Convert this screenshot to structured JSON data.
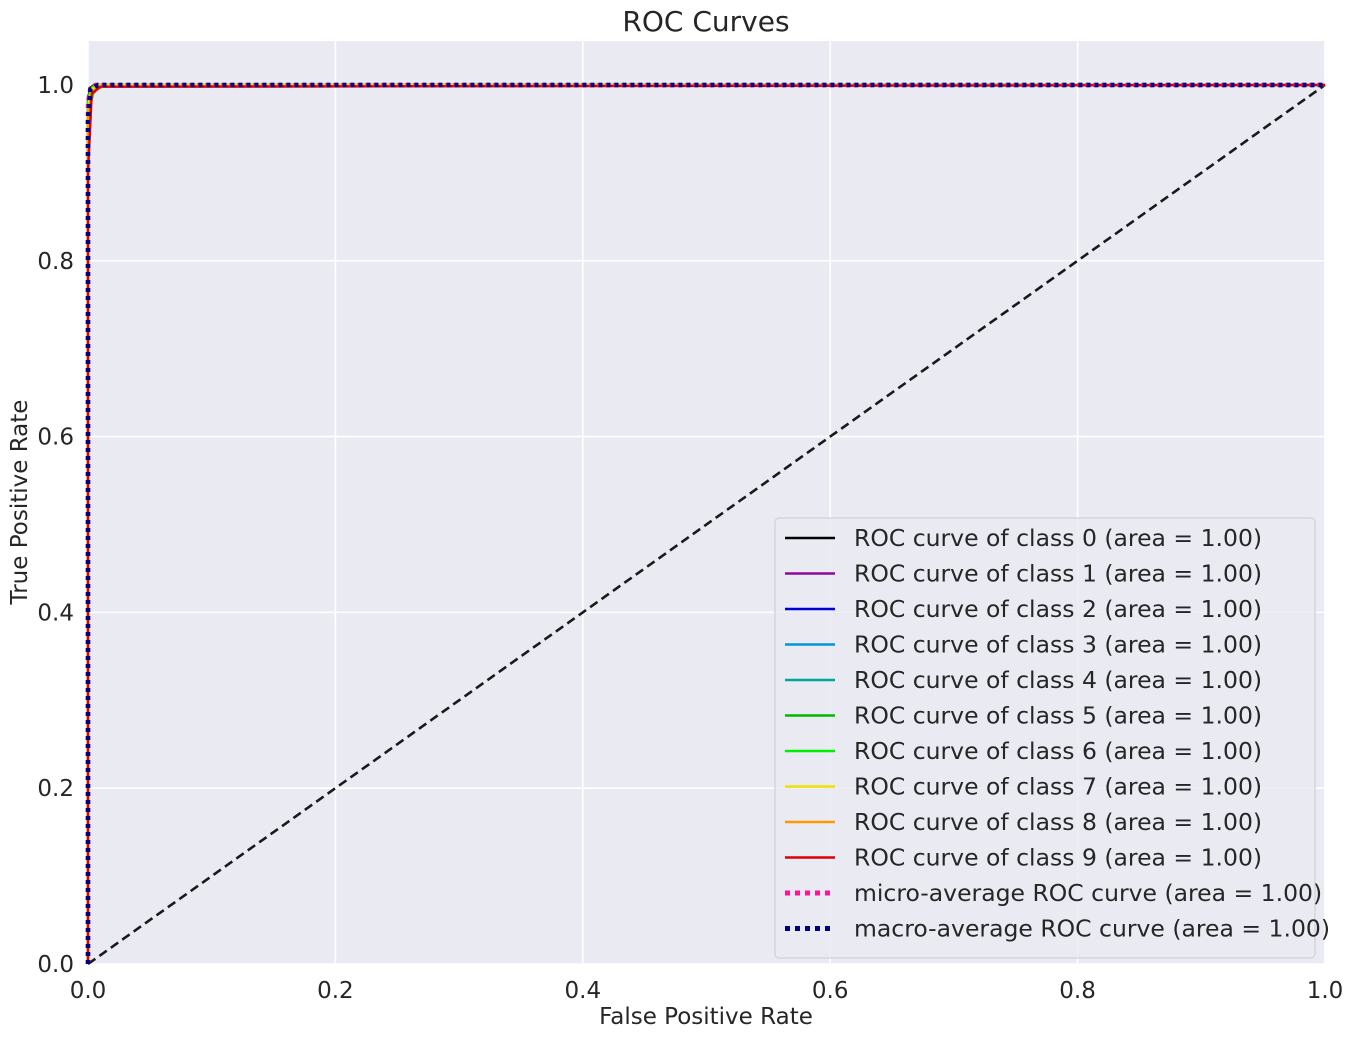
{
  "chart_data": {
    "type": "line",
    "title": "ROC Curves",
    "xlabel": "False Positive Rate",
    "ylabel": "True Positive Rate",
    "xlim": [
      0.0,
      1.0
    ],
    "ylim": [
      0.0,
      1.05
    ],
    "xticks": [
      "0.0",
      "0.2",
      "0.4",
      "0.6",
      "0.8",
      "1.0"
    ],
    "yticks": [
      "0.0",
      "0.2",
      "0.4",
      "0.6",
      "0.8",
      "1.0"
    ],
    "grid": true,
    "legend_position": "lower-right",
    "background_color": "#eaeaf2",
    "series": [
      {
        "name": "ROC curve of class 0 (area = 1.00)",
        "color": "#000000",
        "style": "solid",
        "x": [
          0.0,
          0.0,
          0.002,
          0.005,
          1.0
        ],
        "y": [
          0.0,
          0.985,
          0.997,
          1.0,
          1.0
        ]
      },
      {
        "name": "ROC curve of class 1 (area = 1.00)",
        "color": "#8b0a9c",
        "style": "solid",
        "x": [
          0.0,
          0.0,
          0.002,
          0.006,
          1.0
        ],
        "y": [
          0.0,
          0.98,
          0.996,
          1.0,
          1.0
        ]
      },
      {
        "name": "ROC curve of class 2 (area = 1.00)",
        "color": "#0000d0",
        "style": "solid",
        "x": [
          0.0,
          0.0,
          0.003,
          0.008,
          1.0
        ],
        "y": [
          0.0,
          0.975,
          0.995,
          1.0,
          1.0
        ]
      },
      {
        "name": "ROC curve of class 3 (area = 1.00)",
        "color": "#0095dd",
        "style": "solid",
        "x": [
          0.0,
          0.0,
          0.002,
          0.006,
          1.0
        ],
        "y": [
          0.0,
          0.98,
          0.996,
          1.0,
          1.0
        ]
      },
      {
        "name": "ROC curve of class 4 (area = 1.00)",
        "color": "#00a69a",
        "style": "solid",
        "x": [
          0.0,
          0.0,
          0.003,
          0.008,
          1.0
        ],
        "y": [
          0.0,
          0.97,
          0.994,
          1.0,
          1.0
        ]
      },
      {
        "name": "ROC curve of class 5 (area = 1.00)",
        "color": "#00b800",
        "style": "solid",
        "x": [
          0.0,
          0.0,
          0.004,
          0.01,
          1.0
        ],
        "y": [
          0.0,
          0.965,
          0.99,
          1.0,
          1.0
        ]
      },
      {
        "name": "ROC curve of class 6 (area = 1.00)",
        "color": "#00ee00",
        "style": "solid",
        "x": [
          0.0,
          0.0,
          0.002,
          0.006,
          1.0
        ],
        "y": [
          0.0,
          0.98,
          0.996,
          1.0,
          1.0
        ]
      },
      {
        "name": "ROC curve of class 7 (area = 1.00)",
        "color": "#f0e100",
        "style": "solid",
        "x": [
          0.0,
          0.0,
          0.003,
          0.008,
          1.0
        ],
        "y": [
          0.0,
          0.975,
          0.995,
          1.0,
          1.0
        ]
      },
      {
        "name": "ROC curve of class 8 (area = 1.00)",
        "color": "#ff9900",
        "style": "solid",
        "x": [
          0.0,
          0.0,
          0.004,
          0.012,
          1.0
        ],
        "y": [
          0.0,
          0.97,
          0.993,
          0.998,
          1.0
        ]
      },
      {
        "name": "ROC curve of class 9 (area = 1.00)",
        "color": "#dd0000",
        "style": "solid",
        "x": [
          0.0,
          0.0,
          0.003,
          0.01,
          1.0
        ],
        "y": [
          0.0,
          0.9,
          0.99,
          0.998,
          1.0
        ]
      },
      {
        "name": "micro-average ROC curve (area = 1.00)",
        "color": "#ff1493",
        "style": "dotted",
        "x": [
          0.0,
          0.0,
          0.002,
          0.006,
          1.0
        ],
        "y": [
          0.0,
          0.98,
          0.996,
          1.0,
          1.0
        ]
      },
      {
        "name": "macro-average ROC curve (area = 1.00)",
        "color": "#000080",
        "style": "dotted",
        "x": [
          0.0,
          0.0,
          0.002,
          0.008,
          1.0
        ],
        "y": [
          0.0,
          0.96,
          0.995,
          1.0,
          1.0
        ]
      }
    ],
    "reference_line": {
      "x": [
        0.0,
        1.0
      ],
      "y": [
        0.0,
        1.0
      ],
      "color": "#1a1a1a",
      "style": "dashed"
    }
  }
}
